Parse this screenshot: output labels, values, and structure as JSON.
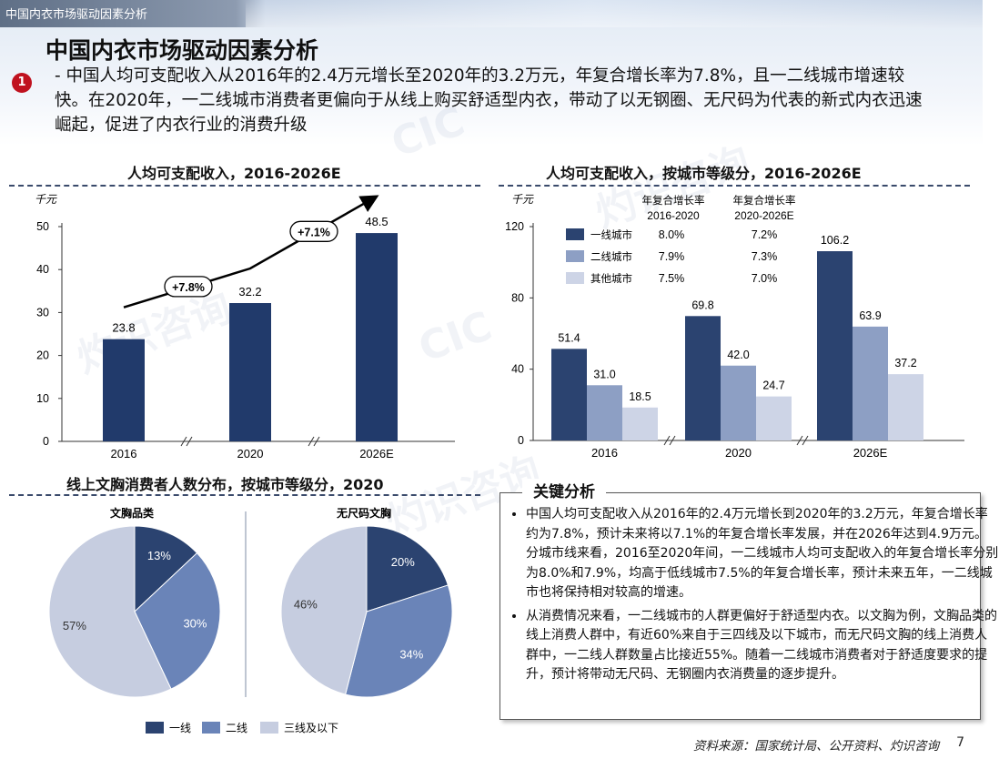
{
  "header": {
    "breadcrumb": "中国内衣市场驱动因素分析",
    "title": "中国内衣市场驱动因素分析",
    "bullet_number": "1",
    "intro": "- 中国人均可支配收入从2016年的2.4万元增长至2020年的3.2万元，年复合增长率为7.8%，且一二线城市增速较快。在2020年，一二线城市消费者更偏向于从线上购买舒适型内衣，带动了以无钢圈、无尺码为代表的新式内衣迅速崛起，促进了内衣行业的消费升级"
  },
  "chart_data": [
    {
      "type": "bar",
      "title": "人均可支配收入，2016-2026E",
      "unit_label": "千元",
      "categories": [
        "2016",
        "2020",
        "2026E"
      ],
      "values": [
        23.8,
        32.2,
        48.5
      ],
      "value_labels": [
        "23.8",
        "32.2",
        "48.5"
      ],
      "ylim": [
        0,
        50
      ],
      "yticks": [
        0,
        10,
        20,
        30,
        40,
        50
      ],
      "color": "#213a6b",
      "cagr_labels": [
        "+7.8%",
        "+7.1%"
      ],
      "axis_break": true
    },
    {
      "type": "bar",
      "title": "人均可支配收入，按城市等级分，2016-2026E",
      "unit_label": "千元",
      "categories": [
        "2016",
        "2020",
        "2026E"
      ],
      "series": [
        {
          "name": "一线城市",
          "values": [
            51.4,
            69.8,
            106.2
          ],
          "value_labels": [
            "51.4",
            "69.8",
            "106.2"
          ],
          "color": "#2b4370"
        },
        {
          "name": "二线城市",
          "values": [
            31.0,
            42.0,
            63.9
          ],
          "value_labels": [
            "31.0",
            "42.0",
            "63.9"
          ],
          "color": "#8d9fc4"
        },
        {
          "name": "其他城市",
          "values": [
            18.5,
            24.7,
            37.2
          ],
          "value_labels": [
            "18.5",
            "24.7",
            "37.2"
          ],
          "color": "#cdd4e6"
        }
      ],
      "ylim": [
        0,
        120
      ],
      "yticks": [
        0,
        40,
        80,
        120
      ],
      "legend_placement": "top-left",
      "cagr_table": {
        "col1_header_line1": "年复合增长率",
        "col1_header_line2": "2016-2020",
        "col2_header_line1": "年复合增长率",
        "col2_header_line2": "2020-2026E",
        "rows": [
          {
            "col1": "8.0%",
            "col2": "7.2%"
          },
          {
            "col1": "7.9%",
            "col2": "7.3%"
          },
          {
            "col1": "7.5%",
            "col2": "7.0%"
          }
        ]
      },
      "axis_break": true
    },
    {
      "type": "pie",
      "title": "线上文胸消费者人数分布，按城市等级分，2020",
      "pies": [
        {
          "title": "文胸品类",
          "values": [
            13,
            30,
            57
          ],
          "labels": [
            "13%",
            "30%",
            "57%"
          ]
        },
        {
          "title": "无尺码文胸",
          "values": [
            20,
            34,
            46
          ],
          "labels": [
            "20%",
            "34%",
            "46%"
          ]
        }
      ],
      "legend": [
        {
          "name": "一线",
          "color": "#2b4370"
        },
        {
          "name": "二线",
          "color": "#6a84b8"
        },
        {
          "name": "三线及以下",
          "color": "#c6cde0"
        }
      ],
      "legend_placement": "bottom"
    }
  ],
  "analysis": {
    "heading": "关键分析",
    "bullets": [
      "中国人均可支配收入从2016年的2.4万元增长到2020年的3.2万元，年复合增长率约为7.8%，预计未来将以7.1%的年复合增长率发展，并在2026年达到4.9万元。分城市线来看，2016至2020年间，一二线城市人均可支配收入的年复合增长率分别为8.0%和7.9%，均高于低线城市7.5%的年复合增长率，预计未来五年，一二线城市也将保持相对较高的增速。",
      "从消费情况来看，一二线城市的人群更偏好于舒适型内衣。以文胸为例，文胸品类的线上消费人群中，有近60%来自于三四线及以下城市，而无尺码文胸的线上消费人群中，一二线人群数量占比接近55%。随着一二线城市消费者对于舒适度要求的提升，预计将带动无尺码、无钢圈内衣消费量的逐步提升。"
    ]
  },
  "footer": {
    "source": "资料来源：国家统计局、公开资料、灼识咨询",
    "page": "7"
  },
  "watermark": {
    "text_cn": "灼识咨询",
    "text_en": "CIC"
  }
}
